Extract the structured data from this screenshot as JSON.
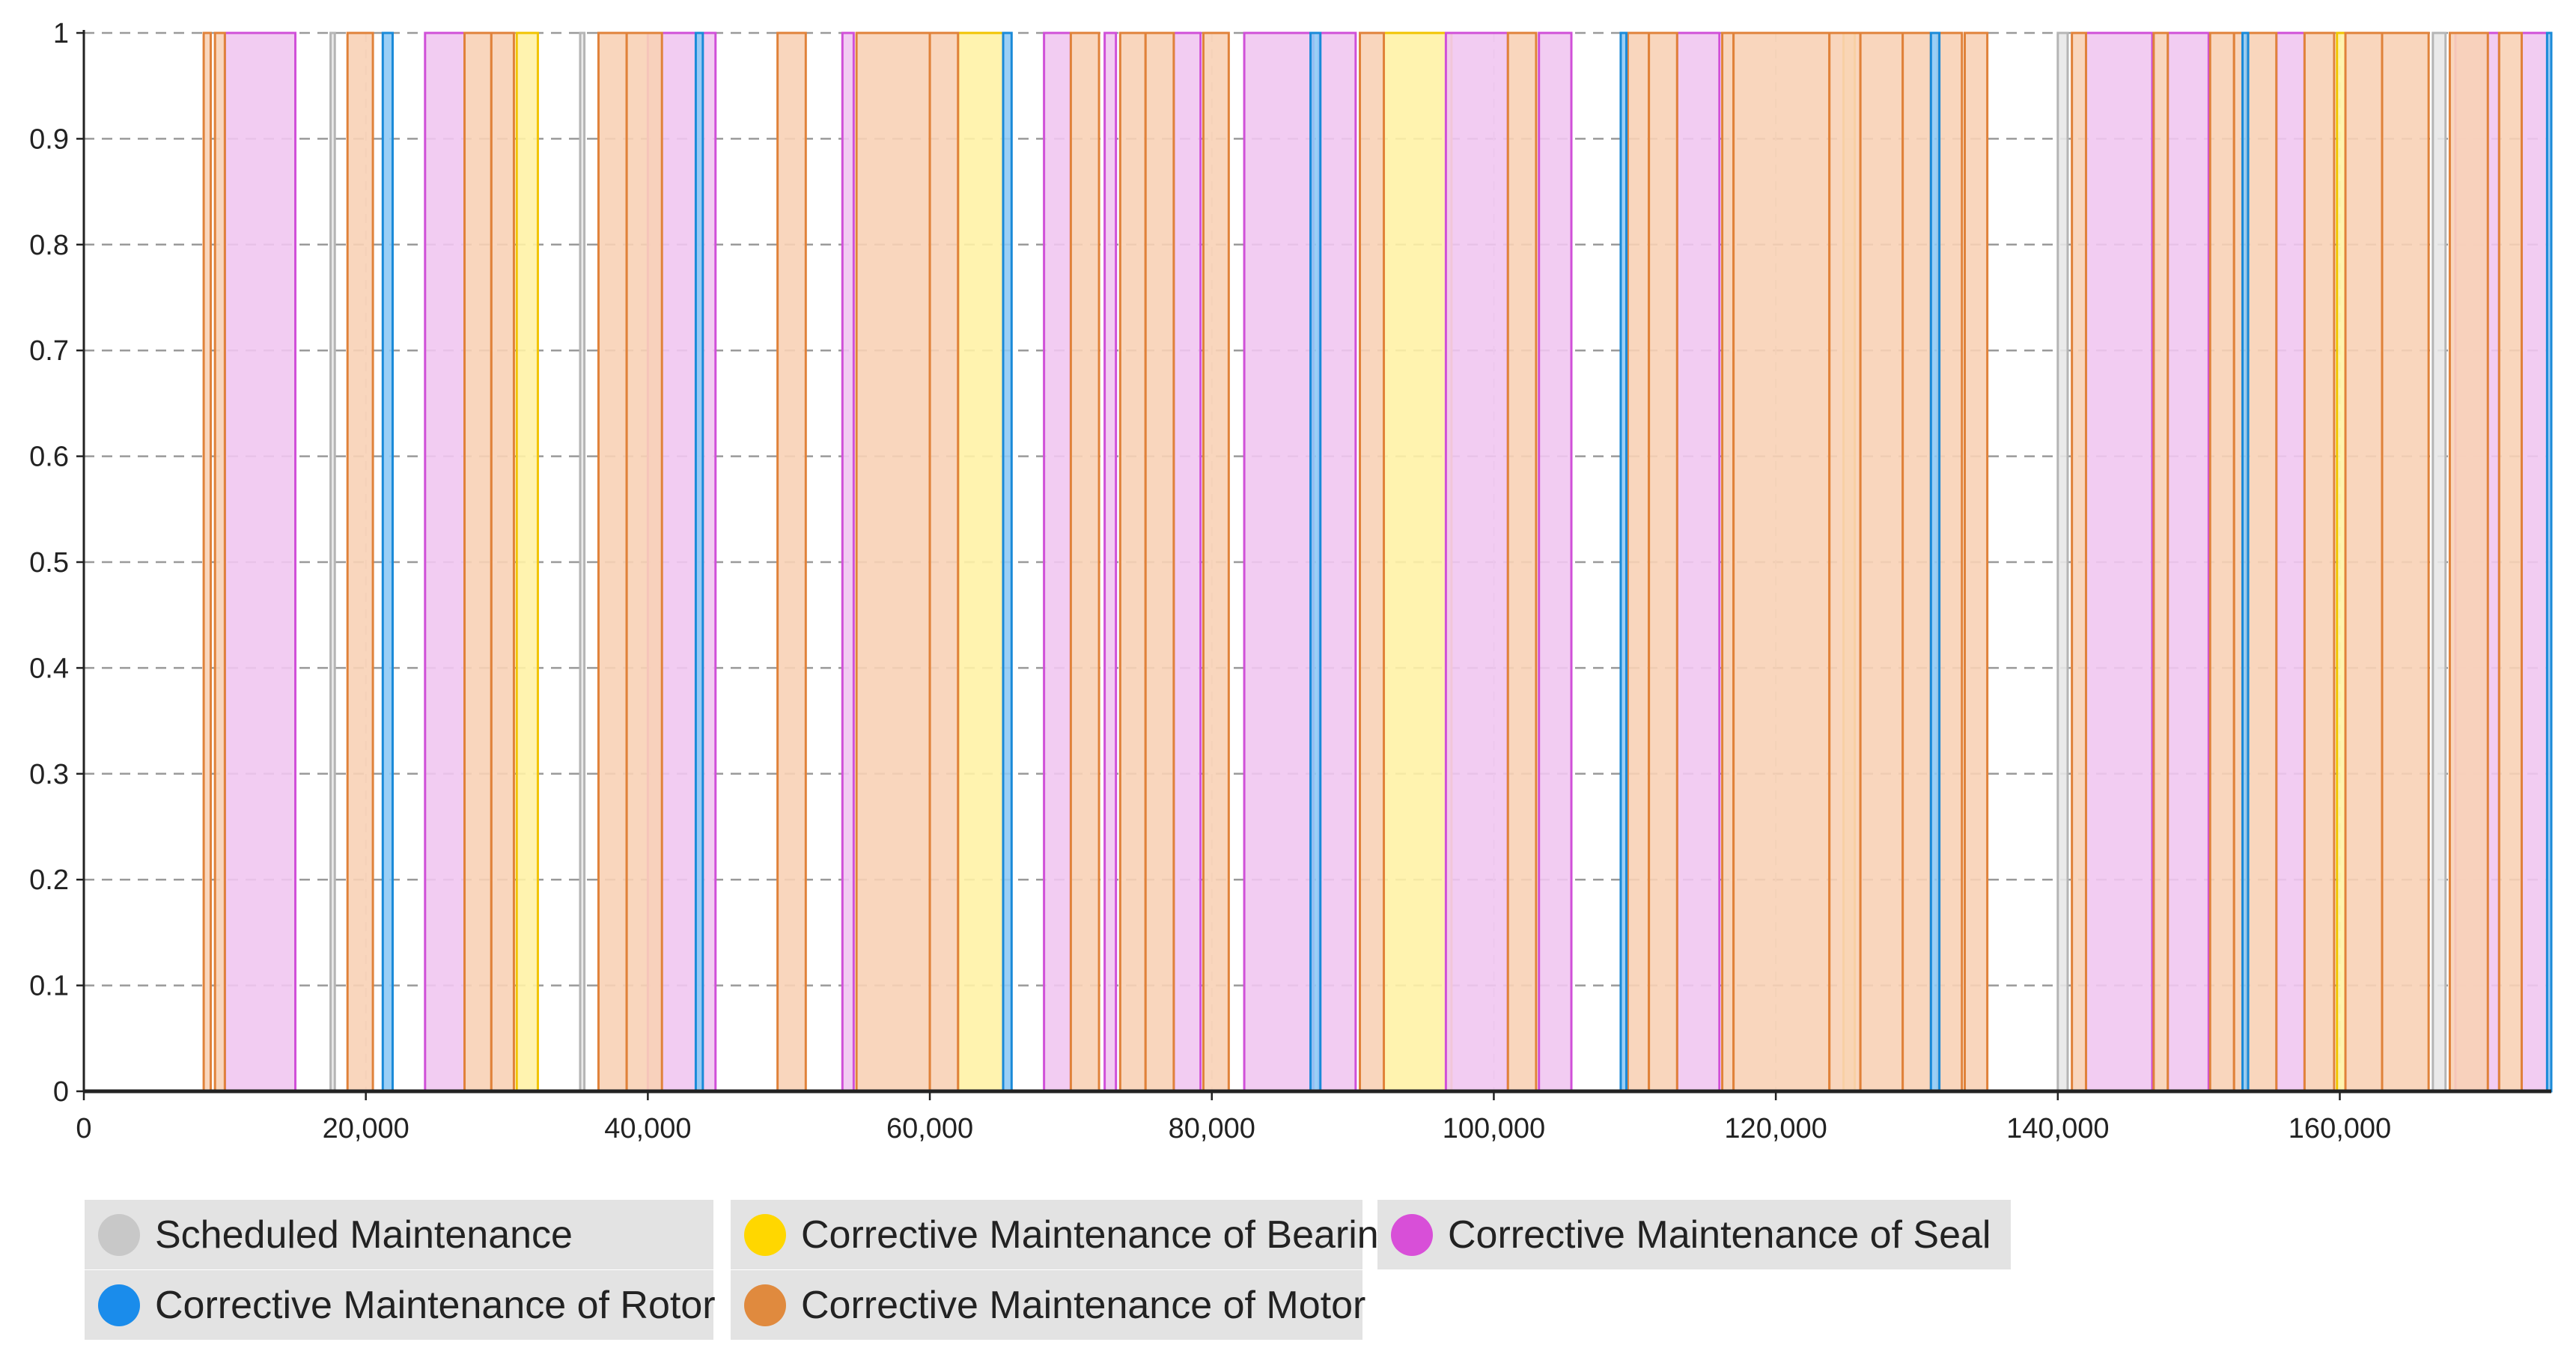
{
  "chart_data": {
    "type": "bar",
    "title": "",
    "xlabel": "",
    "ylabel": "",
    "xlim": [
      0,
      175000
    ],
    "ylim": [
      0,
      1
    ],
    "grid": "horizontal dashed",
    "x_ticks": [
      0,
      20000,
      40000,
      60000,
      80000,
      100000,
      120000,
      140000,
      160000
    ],
    "x_tick_labels": [
      "0",
      "20,000",
      "40,000",
      "60,000",
      "80,000",
      "100,000",
      "120,000",
      "140,000",
      "160,000"
    ],
    "y_ticks": [
      0,
      0.1,
      0.2,
      0.3,
      0.4,
      0.5,
      0.6,
      0.7,
      0.8,
      0.9,
      1
    ],
    "y_tick_labels": [
      "0",
      "0.1",
      "0.2",
      "0.3",
      "0.4",
      "0.5",
      "0.6",
      "0.7",
      "0.8",
      "0.9",
      "1"
    ],
    "legend_position": "bottom",
    "series": [
      {
        "key": "scheduled",
        "name": "Scheduled Maintenance",
        "fill": "#e8e8e8",
        "stroke": "#b5b5b5",
        "intervals": [
          [
            17500,
            17800
          ],
          [
            35200,
            35500
          ],
          [
            140000,
            140700
          ],
          [
            166600,
            167500
          ]
        ]
      },
      {
        "key": "bearing",
        "name": "Corrective Maintenance of Bearing",
        "fill": "#fff2a6",
        "stroke": "#f2c400",
        "intervals": [
          [
            30700,
            32200
          ],
          [
            62000,
            65200
          ],
          [
            92200,
            97000
          ],
          [
            124800,
            125600
          ],
          [
            159800,
            160400
          ]
        ]
      },
      {
        "key": "seal",
        "name": "Corrective Maintenance of Seal",
        "fill": "#f1c6f1",
        "stroke": "#d050d8",
        "intervals": [
          [
            10000,
            15000
          ],
          [
            24200,
            27000
          ],
          [
            40000,
            44800
          ],
          [
            53800,
            54600
          ],
          [
            68100,
            70000
          ],
          [
            72400,
            73200
          ],
          [
            77300,
            79200
          ],
          [
            82300,
            87200
          ],
          [
            87600,
            90200
          ],
          [
            96600,
            101000
          ],
          [
            103200,
            105500
          ],
          [
            113000,
            116000
          ],
          [
            142000,
            146700
          ],
          [
            147800,
            150700
          ],
          [
            155500,
            157500
          ],
          [
            168200,
            171300
          ],
          [
            172900,
            175000
          ]
        ]
      },
      {
        "key": "motor",
        "name": "Corrective Maintenance of Motor",
        "fill": "#f8d2b6",
        "stroke": "#e0823a",
        "intervals": [
          [
            8500,
            9000
          ],
          [
            9300,
            10000
          ],
          [
            18700,
            20500
          ],
          [
            27000,
            28900
          ],
          [
            28900,
            30500
          ],
          [
            36500,
            38500
          ],
          [
            38500,
            41000
          ],
          [
            49200,
            51200
          ],
          [
            54800,
            60000
          ],
          [
            60000,
            62000
          ],
          [
            70000,
            72000
          ],
          [
            73500,
            75300
          ],
          [
            75300,
            77300
          ],
          [
            79400,
            81200
          ],
          [
            90500,
            92200
          ],
          [
            101000,
            103000
          ],
          [
            109500,
            111000
          ],
          [
            111000,
            113000
          ],
          [
            116200,
            117000
          ],
          [
            117000,
            123800
          ],
          [
            123800,
            126000
          ],
          [
            126000,
            129000
          ],
          [
            129000,
            131000
          ],
          [
            131500,
            133200
          ],
          [
            133400,
            135000
          ],
          [
            141000,
            142000
          ],
          [
            146800,
            147800
          ],
          [
            150800,
            152500
          ],
          [
            152500,
            153100
          ],
          [
            153400,
            155500
          ],
          [
            157500,
            159600
          ],
          [
            160400,
            163000
          ],
          [
            163000,
            166300
          ],
          [
            167800,
            170500
          ],
          [
            171300,
            172900
          ]
        ]
      },
      {
        "key": "rotor",
        "name": "Corrective Maintenance of Rotor",
        "fill": "#8fcaf5",
        "stroke": "#1a8ad8",
        "intervals": [
          [
            21200,
            21900
          ],
          [
            43400,
            43900
          ],
          [
            65200,
            65800
          ],
          [
            87000,
            87700
          ],
          [
            109000,
            109400
          ],
          [
            131000,
            131600
          ],
          [
            153100,
            153500
          ],
          [
            174700,
            175000
          ]
        ]
      }
    ]
  },
  "legend": [
    {
      "label": "Scheduled Maintenance",
      "color": "#c8c8c8"
    },
    {
      "label": "Corrective Maintenance of Bearing",
      "color": "#ffd700"
    },
    {
      "label": "Corrective Maintenance of Seal",
      "color": "#d84fd8"
    },
    {
      "label": "Corrective Maintenance of Rotor",
      "color": "#1a8ceb"
    },
    {
      "label": "Corrective Maintenance of Motor",
      "color": "#e08a3e"
    }
  ]
}
